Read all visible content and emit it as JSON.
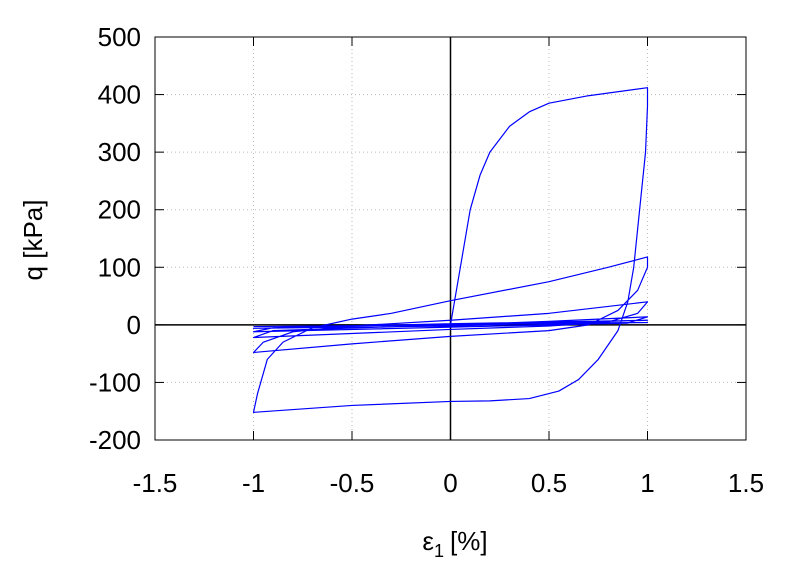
{
  "chart_data": {
    "type": "line",
    "x_label": {
      "base": "ε",
      "sub": "1",
      "rest": "[%]"
    },
    "y_label": "q [kPa]",
    "xlim": [
      -1.5,
      1.5
    ],
    "xticks": [
      -1.5,
      -1,
      -0.5,
      0,
      0.5,
      1,
      1.5
    ],
    "ylim": [
      -200,
      500
    ],
    "yticks": [
      -200,
      -100,
      0,
      100,
      200,
      300,
      400,
      500
    ],
    "grid": true,
    "x": [
      0,
      0.02,
      0.05,
      0.1,
      0.15,
      0.2,
      0.3,
      0.4,
      0.5,
      0.7,
      1.0,
      1.0,
      0.99,
      0.96,
      0.93,
      0.9,
      0.85,
      0.75,
      0.65,
      0.55,
      0.4,
      0.2,
      0,
      -0.5,
      -1.0,
      -0.98,
      -0.93,
      -0.85,
      -0.7,
      -0.5,
      -0.3,
      0,
      0.5,
      0.8,
      1.0,
      1.0,
      0.95,
      0.85,
      0.7,
      0.5,
      0,
      -0.5,
      -1.0,
      -0.95,
      -0.8,
      -0.5,
      0,
      0.5,
      1.0,
      0.95,
      0.8,
      0.5,
      0,
      -1.0,
      -0.9,
      0,
      0.5,
      1.0,
      0.9,
      0,
      -1.0,
      -0.9,
      0,
      1.0,
      0,
      -1.0,
      0,
      1.0,
      0,
      -1.0
    ],
    "series": [
      {
        "color": "#0000ff",
        "values": [
          0,
          40,
          100,
          200,
          260,
          300,
          345,
          370,
          385,
          398,
          412,
          380,
          300,
          200,
          100,
          40,
          -10,
          -60,
          -95,
          -115,
          -128,
          -132,
          -133,
          -140,
          -152,
          -120,
          -60,
          -30,
          -5,
          10,
          20,
          42,
          75,
          100,
          118,
          100,
          60,
          25,
          0,
          -10,
          -20,
          -33,
          -48,
          -30,
          -12,
          -2,
          8,
          20,
          40,
          20,
          5,
          -2,
          -8,
          -22,
          -10,
          0,
          6,
          14,
          3,
          -4,
          -12,
          -5,
          2,
          8,
          -2,
          -6,
          2,
          4,
          0,
          -3
        ]
      }
    ]
  }
}
